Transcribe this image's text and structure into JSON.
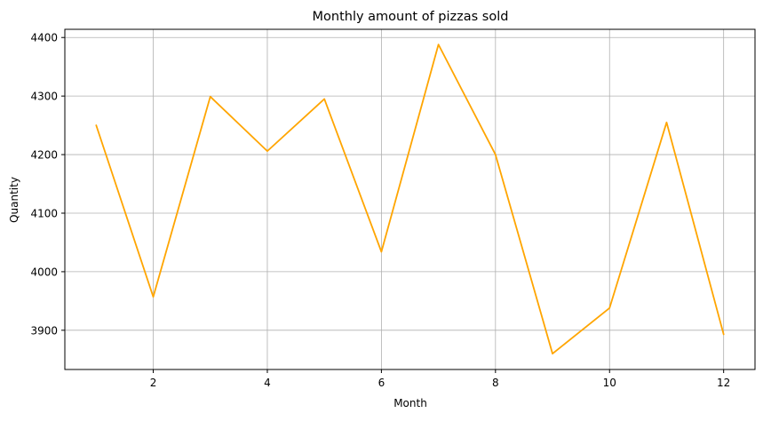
{
  "chart_data": {
    "type": "line",
    "title": "Monthly amount of pizzas sold",
    "xlabel": "Month",
    "ylabel": "Quantity",
    "x": [
      1,
      2,
      3,
      4,
      5,
      6,
      7,
      8,
      9,
      10,
      11,
      12
    ],
    "series": [
      {
        "values": [
          4250,
          3957,
          4299,
          4206,
          4295,
          4034,
          4388,
          4200,
          3860,
          3938,
          4255,
          3893
        ],
        "color": "#ffa500"
      }
    ],
    "xticks": [
      2,
      4,
      6,
      8,
      10,
      12
    ],
    "yticks": [
      3900,
      4000,
      4100,
      4200,
      4300,
      4400
    ],
    "xlim": [
      0.45,
      12.55
    ],
    "ylim": [
      3833,
      4414
    ],
    "grid": true
  }
}
